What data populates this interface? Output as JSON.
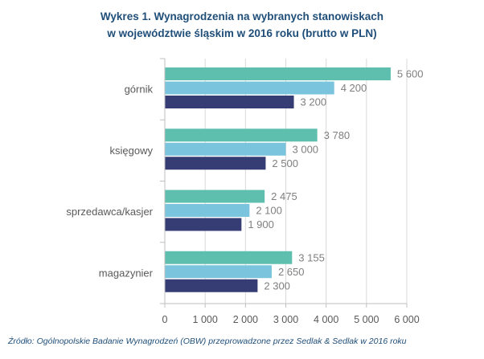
{
  "title": {
    "line1": "Wykres 1. Wynagrodzenia na wybranych stanowiskach",
    "line2": "w województwie śląskim w 2016 roku (brutto w PLN)"
  },
  "source": "Źródło: Ogólnopolskie Badanie Wynagrodzeń (OBW) przeprowadzone  przez Sedlak & Sedlak w 2016 roku",
  "chart_data": {
    "type": "bar",
    "orientation": "horizontal",
    "title": "Wykres 1. Wynagrodzenia na wybranych stanowiskach w województwie śląskim w 2016 roku (brutto w PLN)",
    "categories": [
      "górnik",
      "księgowy",
      "sprzedawca/kasjer",
      "magazynier"
    ],
    "series": [
      {
        "color": "#5fbfae",
        "values": [
          5600,
          3780,
          2475,
          3155
        ]
      },
      {
        "color": "#7ac5dd",
        "values": [
          4200,
          3000,
          2100,
          2650
        ]
      },
      {
        "color": "#353d74",
        "values": [
          3200,
          2500,
          1900,
          2300
        ]
      }
    ],
    "value_labels": [
      [
        "5 600",
        "3 780",
        "2 475",
        "3 155"
      ],
      [
        "4 200",
        "3 000",
        "2 100",
        "2 650"
      ],
      [
        "3 200",
        "2 500",
        "1 900",
        "2 300"
      ]
    ],
    "xlim": [
      0,
      6000
    ],
    "xticks": [
      0,
      1000,
      2000,
      3000,
      4000,
      5000,
      6000
    ],
    "xtick_labels": [
      "0",
      "1 000",
      "2 000",
      "3 000",
      "4 000",
      "5 000",
      "6 000"
    ],
    "grid": true,
    "legend": "none"
  }
}
